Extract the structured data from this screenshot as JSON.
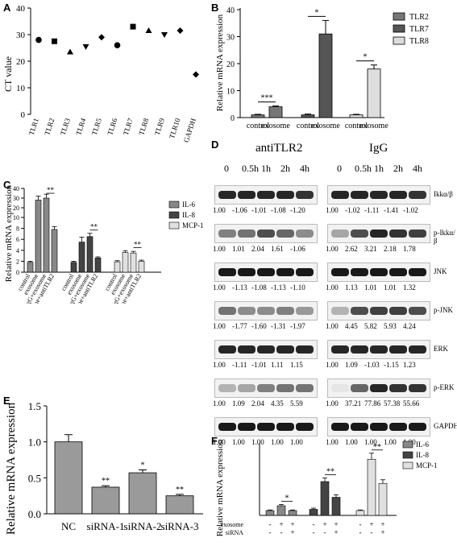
{
  "labels": {
    "A": "A",
    "B": "B",
    "C": "C",
    "D": "D",
    "E": "E",
    "F": "F"
  },
  "panel_A": {
    "ylabel": "CT value",
    "yticks": [
      "0",
      "10",
      "20",
      "30",
      "40"
    ],
    "chart_data": {
      "type": "scatter",
      "categories": [
        "TLR1",
        "TLR2",
        "TLR3",
        "TLR4",
        "TLR5",
        "TLR6",
        "TLR7",
        "TLR8",
        "TLR9",
        "TLR10",
        "GAPDH"
      ],
      "values": [
        28,
        27.5,
        23.5,
        25.5,
        29,
        26,
        33,
        31.5,
        30,
        31.5,
        15
      ],
      "markers": [
        "circle",
        "square",
        "tri-up",
        "tri-down",
        "diamond",
        "circle",
        "square",
        "tri-up",
        "tri-down",
        "diamond",
        "diamond"
      ],
      "ylim": [
        0,
        40
      ]
    }
  },
  "panel_B": {
    "ylabel": "Relative mRNA expression",
    "yticks": [
      "0",
      "10",
      "20",
      "30",
      "40"
    ],
    "xlabels": [
      "control",
      "exosome",
      "control",
      "exosome",
      "control",
      "exosome"
    ],
    "legend": [
      "TLR2",
      "TLR7",
      "TLR8"
    ],
    "sig": [
      "***",
      "*",
      "*"
    ],
    "chart_data": {
      "type": "bar",
      "categories": [
        "control",
        "exosome"
      ],
      "series": [
        {
          "name": "TLR2",
          "values": [
            1,
            4
          ],
          "errors": [
            0.2,
            0.3
          ]
        },
        {
          "name": "TLR7",
          "values": [
            1,
            31
          ],
          "errors": [
            0.3,
            5
          ]
        },
        {
          "name": "TLR8",
          "values": [
            1,
            18
          ],
          "errors": [
            0.2,
            1.5
          ]
        }
      ],
      "ylim": [
        0,
        40
      ]
    }
  },
  "panel_C": {
    "ylabel": "Relative mRNA expression",
    "yticks": [
      "0",
      "2",
      "4",
      "6",
      "8",
      "10",
      "20",
      "30",
      "40"
    ],
    "xlabels": [
      "control",
      "exosome",
      "IgG+exosome",
      "exosome+antiTLR2"
    ],
    "legend": [
      "IL-6",
      "IL-8",
      "MCP-1"
    ],
    "sig": [
      "**",
      "**",
      "**"
    ],
    "chart_data": {
      "type": "bar",
      "categories": [
        "control",
        "exosome",
        "IgG+exosome",
        "exosome+antiTLR2"
      ],
      "series": [
        {
          "name": "IL-6",
          "values": [
            1.8,
            28,
            30,
            7.8
          ],
          "errors": [
            0.2,
            4,
            4,
            0.5
          ]
        },
        {
          "name": "IL-8",
          "values": [
            1.8,
            5.5,
            6.5,
            2.6
          ],
          "errors": [
            0.2,
            0.9,
            0.6,
            0.2
          ]
        },
        {
          "name": "MCP-1",
          "values": [
            1.9,
            3.6,
            3.5,
            2.0
          ],
          "errors": [
            0.2,
            0.3,
            0.3,
            0.2
          ]
        }
      ]
    }
  },
  "panel_D": {
    "groups": [
      "antiTLR2",
      "IgG"
    ],
    "timepoints": [
      "0",
      "0.5h",
      "1h",
      "2h",
      "4h"
    ],
    "proteins": [
      "Ikkα/β",
      "p-Ikkα/β",
      "JNK",
      "p-JNK",
      "ERK",
      "p-ERK",
      "GAPDH"
    ],
    "antiTLR2_values": [
      [
        "1.00",
        "-1.06",
        "-1.01",
        "-1.08",
        "-1.20"
      ],
      [
        "1.00",
        "1.01",
        "2.04",
        "1.61",
        "-1.06"
      ],
      [
        "1.00",
        "-1.13",
        "-1.08",
        "-1.13",
        "-1.10"
      ],
      [
        "1.00",
        "-1.77",
        "-1.60",
        "-1.31",
        "-1.97"
      ],
      [
        "1.00",
        "-1.11",
        "-1.01",
        "1.11",
        "1.15"
      ],
      [
        "1.00",
        "1.09",
        "2.04",
        "4.35",
        "5.59"
      ],
      [
        "1.00",
        "1.00",
        "1.00",
        "1.00",
        "1.00"
      ]
    ],
    "igg_values": [
      [
        "1.00",
        "-1.02",
        "-1.11",
        "-1.41",
        "-1.02"
      ],
      [
        "1.00",
        "2.62",
        "3.21",
        "2.18",
        "1.78"
      ],
      [
        "1.00",
        "1.13",
        "1.01",
        "1.01",
        "1.32"
      ],
      [
        "1.00",
        "4.45",
        "5.82",
        "5.93",
        "4.24"
      ],
      [
        "1.00",
        "1.09",
        "-1.03",
        "-1.15",
        "1.23"
      ],
      [
        "1.00",
        "37.21",
        "77.86",
        "57.38",
        "55.66"
      ],
      [
        "1.00",
        "1.00",
        "1.00",
        "1.00",
        "1.00"
      ]
    ]
  },
  "panel_E": {
    "ylabel": "Relative mRNA expression",
    "yticks": [
      "0.0",
      "0.5",
      "1.0",
      "1.5"
    ],
    "sig": [
      "",
      "**",
      "*",
      "**"
    ],
    "chart_data": {
      "type": "bar",
      "categories": [
        "NC",
        "siRNA-1",
        "siRNA-2",
        "siRNA-3"
      ],
      "values": [
        1.0,
        0.37,
        0.57,
        0.25
      ],
      "errors": [
        0.1,
        0.02,
        0.04,
        0.02
      ],
      "ylim": [
        0,
        1.5
      ]
    }
  },
  "panel_F": {
    "ylabel": "Relative mRNA expression",
    "legend": [
      "IL-6",
      "IL-8",
      "MCP-1"
    ],
    "sig": [
      "*",
      "**",
      "**"
    ],
    "row_labels": [
      "exosome",
      "siRNA"
    ],
    "exosome_signs": [
      "-",
      "+",
      "+",
      "-",
      "+",
      "+",
      "-",
      "+",
      "+"
    ],
    "sirna_signs": [
      "-",
      "-",
      "+",
      "-",
      "-",
      "+",
      "-",
      "-",
      "+"
    ],
    "chart_data": {
      "type": "bar",
      "series": [
        {
          "name": "IL-6",
          "values": [
            0.08,
            0.16,
            0.08
          ],
          "errors": [
            0.01,
            0.02,
            0.01
          ]
        },
        {
          "name": "IL-8",
          "values": [
            0.1,
            0.56,
            0.3
          ],
          "errors": [
            0.02,
            0.06,
            0.04
          ]
        },
        {
          "name": "MCP-1",
          "values": [
            0.08,
            0.93,
            0.53
          ],
          "errors": [
            0.01,
            0.1,
            0.06
          ]
        }
      ]
    }
  }
}
